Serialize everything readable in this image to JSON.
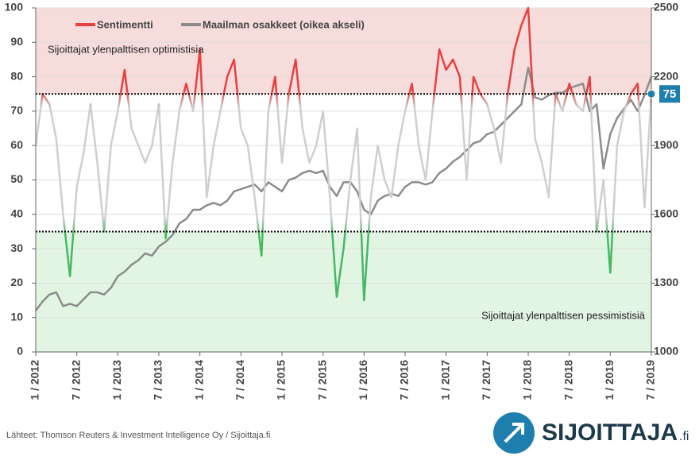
{
  "chart_data": {
    "type": "line",
    "x": [
      "2012-01",
      "2012-02",
      "2012-03",
      "2012-04",
      "2012-05",
      "2012-06",
      "2012-07",
      "2012-08",
      "2012-09",
      "2012-10",
      "2012-11",
      "2012-12",
      "2013-01",
      "2013-02",
      "2013-03",
      "2013-04",
      "2013-05",
      "2013-06",
      "2013-07",
      "2013-08",
      "2013-09",
      "2013-10",
      "2013-11",
      "2013-12",
      "2014-01",
      "2014-02",
      "2014-03",
      "2014-04",
      "2014-05",
      "2014-06",
      "2014-07",
      "2014-08",
      "2014-09",
      "2014-10",
      "2014-11",
      "2014-12",
      "2015-01",
      "2015-02",
      "2015-03",
      "2015-04",
      "2015-05",
      "2015-06",
      "2015-07",
      "2015-08",
      "2015-09",
      "2015-10",
      "2015-11",
      "2015-12",
      "2016-01",
      "2016-02",
      "2016-03",
      "2016-04",
      "2016-05",
      "2016-06",
      "2016-07",
      "2016-08",
      "2016-09",
      "2016-10",
      "2016-11",
      "2016-12",
      "2017-01",
      "2017-02",
      "2017-03",
      "2017-04",
      "2017-05",
      "2017-06",
      "2017-07",
      "2017-08",
      "2017-09",
      "2017-10",
      "2017-11",
      "2017-12",
      "2018-01",
      "2018-02",
      "2018-03",
      "2018-04",
      "2018-05",
      "2018-06",
      "2018-07",
      "2018-08",
      "2018-09",
      "2018-10",
      "2018-11",
      "2018-12",
      "2019-01",
      "2019-02",
      "2019-03",
      "2019-04",
      "2019-05",
      "2019-06",
      "2019-07"
    ],
    "series": [
      {
        "name": "Sentimentti",
        "color": "#e8403f",
        "gradient_colors": [
          "#e8403f",
          "#cfcfcf",
          "#45b865"
        ],
        "values": [
          60,
          75,
          72,
          62,
          40,
          22,
          48,
          58,
          72,
          55,
          35,
          60,
          70,
          82,
          65,
          60,
          55,
          60,
          72,
          33,
          55,
          70,
          78,
          70,
          88,
          45,
          60,
          70,
          80,
          85,
          65,
          60,
          45,
          28,
          70,
          80,
          55,
          75,
          85,
          65,
          55,
          60,
          70,
          45,
          16,
          30,
          50,
          65,
          15,
          45,
          60,
          50,
          45,
          60,
          70,
          78,
          60,
          50,
          70,
          88,
          82,
          85,
          80,
          50,
          80,
          75,
          72,
          65,
          55,
          75,
          88,
          95,
          100,
          62,
          55,
          45,
          75,
          70,
          78,
          72,
          70,
          80,
          35,
          50,
          23,
          60,
          70,
          75,
          78,
          42,
          75
        ]
      },
      {
        "name": "Maailman osakkeet (oikea akseli)",
        "color": "#8c8c8c",
        "axis": "y2",
        "values": [
          1180,
          1220,
          1250,
          1260,
          1200,
          1210,
          1200,
          1230,
          1260,
          1260,
          1250,
          1280,
          1330,
          1350,
          1380,
          1400,
          1430,
          1420,
          1460,
          1480,
          1510,
          1560,
          1580,
          1620,
          1620,
          1640,
          1650,
          1640,
          1660,
          1700,
          1710,
          1720,
          1730,
          1700,
          1740,
          1720,
          1700,
          1750,
          1760,
          1780,
          1790,
          1780,
          1790,
          1720,
          1680,
          1740,
          1740,
          1700,
          1620,
          1600,
          1660,
          1680,
          1690,
          1680,
          1720,
          1740,
          1740,
          1730,
          1740,
          1780,
          1800,
          1830,
          1850,
          1880,
          1910,
          1920,
          1950,
          1960,
          1990,
          2020,
          2050,
          2080,
          2240,
          2110,
          2100,
          2120,
          2130,
          2130,
          2150,
          2160,
          2170,
          2050,
          2080,
          1800,
          1950,
          2020,
          2060,
          2100,
          2050,
          2120,
          2200
        ]
      }
    ],
    "xlim": [
      "2012-01",
      "2019-07"
    ],
    "xticks": [
      {
        "value": "2012-01",
        "label": "1 / 2012"
      },
      {
        "value": "2012-07",
        "label": "7 / 2012"
      },
      {
        "value": "2013-01",
        "label": "1 / 2013"
      },
      {
        "value": "2013-07",
        "label": "7 / 2013"
      },
      {
        "value": "2014-01",
        "label": "1 / 2014"
      },
      {
        "value": "2014-07",
        "label": "7 / 2014"
      },
      {
        "value": "2015-01",
        "label": "1 / 2015"
      },
      {
        "value": "2015-07",
        "label": "7 / 2015"
      },
      {
        "value": "2016-01",
        "label": "1 / 2016"
      },
      {
        "value": "2016-07",
        "label": "7 / 2016"
      },
      {
        "value": "2017-01",
        "label": "1 / 2017"
      },
      {
        "value": "2017-07",
        "label": "7 / 2017"
      },
      {
        "value": "2018-01",
        "label": "1 / 2018"
      },
      {
        "value": "2018-07",
        "label": "7 / 2018"
      },
      {
        "value": "2019-01",
        "label": "1 / 2019"
      },
      {
        "value": "2019-07",
        "label": "7 / 2019"
      }
    ],
    "ylim": [
      0,
      100
    ],
    "yticks": [
      0,
      10,
      20,
      30,
      40,
      50,
      60,
      70,
      80,
      90,
      100
    ],
    "y2lim": [
      1000,
      2500
    ],
    "y2ticks": [
      1000,
      1300,
      1600,
      1900,
      2200,
      2500
    ],
    "grid": true,
    "bands": [
      {
        "from": 75,
        "to": 100,
        "color": "#f7dcdc"
      },
      {
        "from": 0,
        "to": 35,
        "color": "#e2f5e2"
      }
    ],
    "reference_lines": [
      75,
      35
    ],
    "current_value": 75,
    "annotations": [
      "Sijoittajat ylenpalttisen optimistisia",
      "Sijoittajat ylenpalttisen pessimistisiä"
    ]
  },
  "footer": {
    "source": "Lähteet: Thomson Reuters & Investment Intelligence Oy / Sijoittaja.fi",
    "logo": "SIJOITTAJA",
    "logo_suffix": ".fi"
  }
}
